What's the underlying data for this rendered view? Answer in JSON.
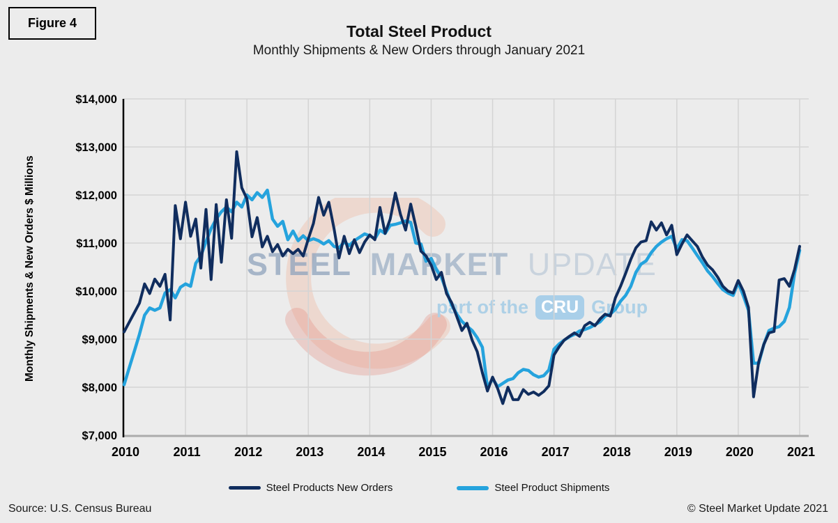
{
  "figure_label": "Figure 4",
  "header": {
    "title": "Total Steel Product",
    "subtitle": "Monthly Shipments & New Orders through January 2021"
  },
  "watermark": {
    "word1": "STEEL",
    "word2": "MARKET",
    "word3": "UPDATE",
    "tagline_prefix": "part of the",
    "cru": "CRU",
    "group": "Group"
  },
  "footer": {
    "source": "Source: U.S. Census Bureau",
    "copyright": "© Steel Market Update 2021"
  },
  "theme": {
    "page_background": "#ececec",
    "gridline_color": "#d4d4d4",
    "left_axis_color": "#000000",
    "bottom_axis_color": "#ababab",
    "new_orders_color": "#102d5e",
    "shipments_color": "#25a3dd",
    "watermark_swoosh_color": "#e8a28d",
    "cru_badge_color": "#a9cfe9"
  },
  "chart_data": {
    "type": "line",
    "title": "Total Steel Product",
    "subtitle": "Monthly Shipments & New Orders through January 2021",
    "xlabel": "",
    "ylabel": "Monthly Shipments & New Orders $ Millions",
    "ylim": [
      7000,
      14000
    ],
    "y_tick_step": 1000,
    "y_tick_labels_top_to_bottom": [
      "$14,000",
      "$13,000",
      "$12,000",
      "$11,000",
      "$10,000",
      "$9,000",
      "$8,000",
      "$7,000"
    ],
    "x_ticks": [
      "2010",
      "2011",
      "2012",
      "2013",
      "2014",
      "2015",
      "2016",
      "2017",
      "2018",
      "2019",
      "2020",
      "2021"
    ],
    "x_unit": "month",
    "x_start": "2010-01",
    "x_end": "2021-01",
    "grid": true,
    "legend_position": "bottom",
    "series": [
      {
        "name": "Steel Products New Orders",
        "color": "#102d5e",
        "stroke_width": 4,
        "values": [
          9150,
          9350,
          9550,
          9750,
          10150,
          9950,
          10250,
          10100,
          10350,
          9400,
          11780,
          11090,
          11850,
          11140,
          11500,
          10480,
          11700,
          10240,
          11800,
          10600,
          11900,
          11100,
          12900,
          12150,
          11920,
          11130,
          11530,
          10920,
          11140,
          10820,
          10970,
          10730,
          10870,
          10780,
          10870,
          10730,
          11090,
          11410,
          11950,
          11580,
          11850,
          11310,
          10690,
          11140,
          10780,
          11070,
          10800,
          11020,
          11170,
          11070,
          11740,
          11200,
          11500,
          12040,
          11600,
          11270,
          11810,
          11350,
          10830,
          10730,
          10540,
          10240,
          10390,
          9950,
          9760,
          9470,
          9180,
          9330,
          8980,
          8740,
          8300,
          7920,
          8210,
          7970,
          7660,
          8000,
          7740,
          7740,
          7950,
          7850,
          7900,
          7830,
          7910,
          8030,
          8670,
          8840,
          8980,
          9060,
          9130,
          9060,
          9280,
          9350,
          9280,
          9420,
          9520,
          9480,
          9860,
          10100,
          10370,
          10660,
          10900,
          11020,
          11050,
          11440,
          11270,
          11420,
          11170,
          11370,
          10760,
          10980,
          11170,
          11050,
          10930,
          10710,
          10540,
          10440,
          10290,
          10100,
          10000,
          9960,
          10220,
          10000,
          9660,
          7800,
          8530,
          8890,
          9130,
          9160,
          10230,
          10260,
          10100,
          10450,
          10930
        ]
      },
      {
        "name": "Steel Product Shipments",
        "color": "#25a3dd",
        "stroke_width": 4.5,
        "values": [
          8050,
          8400,
          8750,
          9100,
          9500,
          9650,
          9600,
          9650,
          9960,
          10030,
          9860,
          10080,
          10150,
          10100,
          10580,
          10730,
          11030,
          11300,
          11500,
          11650,
          11750,
          11650,
          11850,
          11750,
          12000,
          11900,
          12050,
          11950,
          12100,
          11500,
          11350,
          11450,
          11070,
          11250,
          11050,
          11150,
          11050,
          11090,
          11050,
          10980,
          11050,
          10930,
          10900,
          11020,
          10950,
          11050,
          11120,
          11190,
          11150,
          11090,
          11270,
          11200,
          11370,
          11390,
          11420,
          11460,
          11430,
          11000,
          10980,
          10620,
          10680,
          10450,
          10290,
          10000,
          9710,
          9520,
          9370,
          9270,
          9180,
          9030,
          8830,
          7990,
          8180,
          8010,
          8080,
          8150,
          8180,
          8300,
          8370,
          8350,
          8260,
          8210,
          8240,
          8360,
          8790,
          8900,
          8980,
          9050,
          9100,
          9170,
          9200,
          9240,
          9300,
          9360,
          9480,
          9520,
          9620,
          9790,
          9910,
          10100,
          10390,
          10560,
          10630,
          10800,
          10930,
          11020,
          11090,
          11140,
          10880,
          11070,
          11050,
          10900,
          10740,
          10590,
          10420,
          10300,
          10160,
          10030,
          9960,
          9910,
          10180,
          9900,
          9600,
          8500,
          8500,
          8890,
          9180,
          9230,
          9260,
          9370,
          9660,
          10370,
          10850
        ]
      }
    ]
  }
}
